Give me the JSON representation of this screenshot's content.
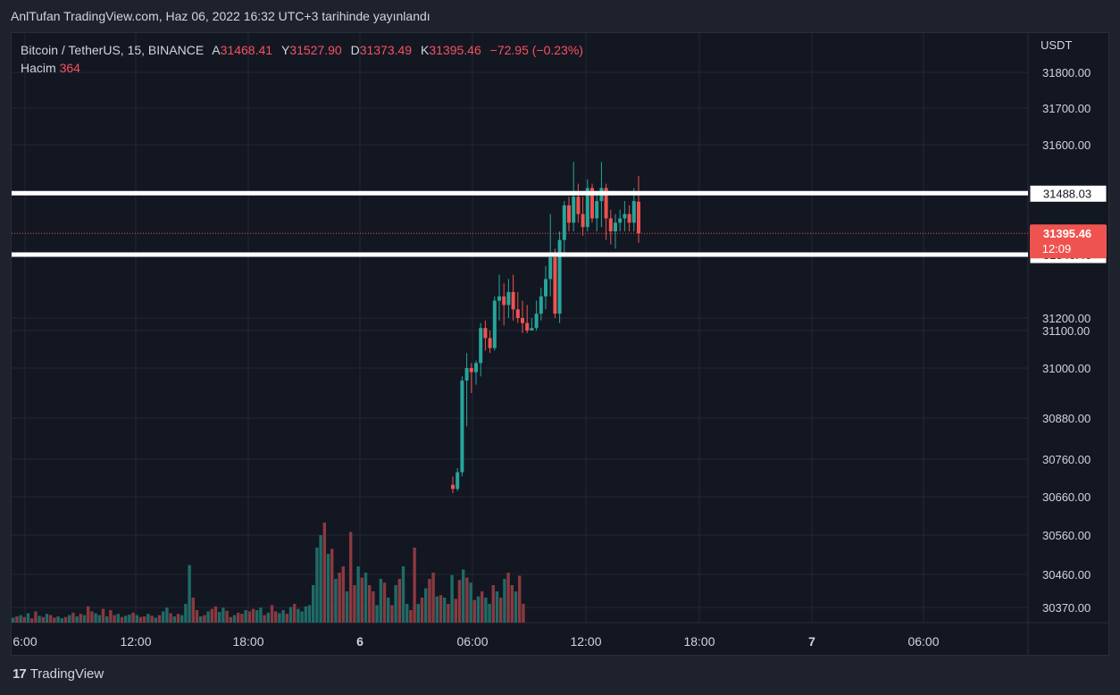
{
  "header": {
    "publish_line": "AnlTufan TradingView.com, Haz 06, 2022 16:32 UTC+3 tarihinde yayınlandı"
  },
  "legend": {
    "symbol": "Bitcoin / TetherUS, 15, BINANCE",
    "open_label": "A",
    "open": "31468.41",
    "high_label": "Y",
    "high": "31527.90",
    "low_label": "D",
    "low": "31373.49",
    "close_label": "K",
    "close": "31395.46",
    "change": "−72.95 (−0.23%)",
    "volume_label": "Hacim",
    "volume": "364"
  },
  "footer": {
    "brand": "TradingView",
    "logo_icon": "tradingview-logo-icon"
  },
  "colors": {
    "up": "#26a69a",
    "down": "#ef5350",
    "vol_up": "#1f6b67",
    "vol_down": "#8a3a40",
    "grid": "#232733",
    "text": "#d1d4dc",
    "background": "#131722"
  },
  "chart_data": {
    "type": "candlestick",
    "quote_unit": "USDT",
    "y_ticks": [
      "31800.00",
      "31700.00",
      "31600.00",
      "31200.00",
      "31100.00",
      "31000.00",
      "30880.00",
      "30760.00",
      "30660.00",
      "30560.00",
      "30460.00",
      "30370.00"
    ],
    "x_ticks": [
      "6:00",
      "12:00",
      "18:00",
      "6",
      "06:00",
      "12:00",
      "18:00",
      "7",
      "06:00"
    ],
    "horizontal_lines": [
      {
        "price": 31488.03,
        "label": "31488.03"
      },
      {
        "price": 31346.46,
        "label": "31346.46"
      }
    ],
    "last_price": {
      "value": 31395.46,
      "label": "31395.46",
      "countdown": "12:09"
    },
    "candles": [
      [
        30720,
        30740,
        30700,
        30710
      ],
      [
        30710,
        30760,
        30705,
        30750
      ],
      [
        30750,
        30980,
        30740,
        30970
      ],
      [
        30970,
        31060,
        30860,
        31000
      ],
      [
        31000,
        31020,
        30940,
        30990
      ],
      [
        30990,
        31030,
        30960,
        31020
      ],
      [
        31020,
        31180,
        30980,
        31160
      ],
      [
        31160,
        31190,
        31070,
        31120
      ],
      [
        31120,
        31150,
        31060,
        31080
      ],
      [
        31080,
        31250,
        31070,
        31240
      ],
      [
        31240,
        31300,
        31190,
        31250
      ],
      [
        31250,
        31280,
        31170,
        31230
      ],
      [
        31230,
        31290,
        31200,
        31260
      ],
      [
        31260,
        31300,
        31190,
        31220
      ],
      [
        31220,
        31260,
        31180,
        31200
      ],
      [
        31200,
        31240,
        31140,
        31180
      ],
      [
        31180,
        31230,
        31140,
        31150
      ],
      [
        31150,
        31200,
        31150,
        31160
      ],
      [
        31160,
        31240,
        31150,
        31210
      ],
      [
        31210,
        31270,
        31190,
        31250
      ],
      [
        31250,
        31320,
        31220,
        31290
      ],
      [
        31290,
        31440,
        31250,
        31340
      ],
      [
        31340,
        31360,
        31200,
        31210
      ],
      [
        31210,
        31400,
        31180,
        31380
      ],
      [
        31380,
        31470,
        31350,
        31460
      ],
      [
        31460,
        31480,
        31400,
        31420
      ],
      [
        31420,
        31560,
        31400,
        31480
      ],
      [
        31480,
        31510,
        31420,
        31440
      ],
      [
        31440,
        31480,
        31390,
        31410
      ],
      [
        31410,
        31520,
        31400,
        31500
      ],
      [
        31500,
        31510,
        31420,
        31430
      ],
      [
        31430,
        31490,
        31400,
        31470
      ],
      [
        31470,
        31560,
        31410,
        31500
      ],
      [
        31500,
        31510,
        31380,
        31430
      ],
      [
        31430,
        31450,
        31370,
        31400
      ],
      [
        31400,
        31440,
        31360,
        31420
      ],
      [
        31420,
        31450,
        31400,
        31430
      ],
      [
        31430,
        31470,
        31400,
        31440
      ],
      [
        31440,
        31460,
        31400,
        31420
      ],
      [
        31420,
        31500,
        31400,
        31470
      ],
      [
        31468.41,
        31527.9,
        31373.49,
        31395.46
      ]
    ],
    "volume_up": [
      1,
      0,
      1,
      0,
      1,
      0,
      0,
      1,
      0,
      1,
      0,
      0,
      1,
      1,
      0,
      1,
      0,
      1,
      0,
      1,
      0,
      0,
      1,
      1,
      0,
      1,
      0,
      0,
      1,
      0,
      1,
      1,
      0,
      1,
      0,
      0,
      1,
      0,
      1,
      0,
      1,
      1,
      0,
      1,
      0,
      1,
      1,
      1,
      0,
      0,
      1,
      0,
      1,
      0,
      0,
      1,
      1,
      0,
      0,
      1,
      0,
      0,
      1,
      0,
      0,
      1,
      1,
      0,
      1,
      0,
      0,
      1,
      1,
      0,
      1,
      0,
      1,
      1,
      1,
      1,
      1,
      1,
      1,
      0,
      1,
      0,
      1,
      0,
      0,
      1,
      0,
      0,
      1,
      0,
      1,
      0,
      0,
      1,
      1,
      0,
      1,
      0,
      1,
      0,
      1,
      1,
      0,
      0,
      1,
      0,
      1,
      0,
      0,
      1,
      0,
      1,
      0,
      1,
      0,
      0,
      1,
      0,
      1,
      0,
      1,
      0,
      1,
      1,
      0,
      1,
      0,
      1,
      0,
      0,
      1,
      0,
      0
    ],
    "volume": [
      8,
      10,
      12,
      9,
      15,
      7,
      18,
      11,
      9,
      14,
      12,
      8,
      10,
      7,
      9,
      12,
      16,
      10,
      14,
      12,
      26,
      18,
      15,
      12,
      22,
      10,
      20,
      12,
      14,
      9,
      11,
      13,
      16,
      12,
      9,
      10,
      14,
      11,
      8,
      12,
      18,
      24,
      15,
      10,
      14,
      12,
      30,
      92,
      40,
      20,
      10,
      12,
      18,
      22,
      26,
      17,
      24,
      19,
      9,
      12,
      16,
      14,
      20,
      18,
      22,
      20,
      24,
      12,
      16,
      28,
      18,
      15,
      20,
      14,
      25,
      30,
      22,
      18,
      26,
      28,
      60,
      120,
      140,
      160,
      110,
      118,
      70,
      80,
      90,
      50,
      145,
      60,
      90,
      72,
      80,
      60,
      50,
      28,
      70,
      64,
      40,
      28,
      60,
      70,
      90,
      30,
      20,
      120,
      30,
      40,
      55,
      70,
      80,
      42,
      44,
      40,
      30,
      76,
      38,
      68,
      85,
      72,
      64,
      36,
      42,
      50,
      40,
      30,
      60,
      50,
      40,
      70,
      80,
      60,
      50,
      75,
      30
    ]
  }
}
